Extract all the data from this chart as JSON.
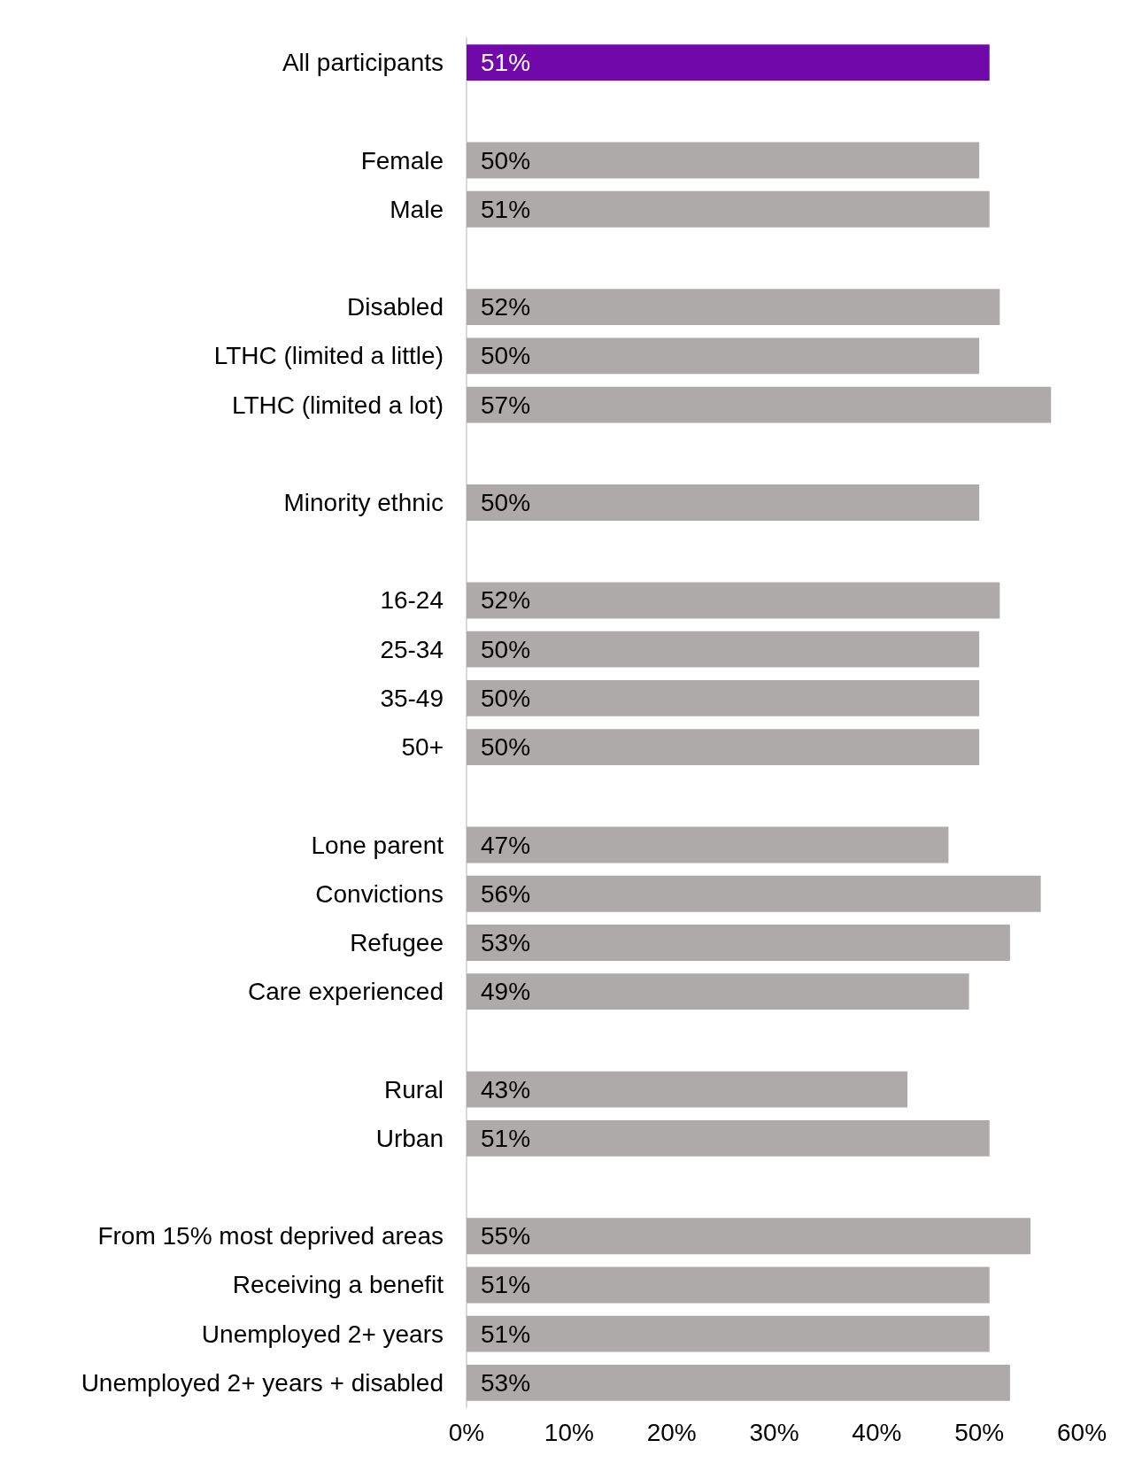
{
  "chart_data": {
    "type": "bar",
    "orientation": "horizontal",
    "categories": [
      "All participants",
      null,
      "Female",
      "Male",
      null,
      "Disabled",
      "LTHC (limited a little)",
      "LTHC (limited a lot)",
      null,
      "Minority ethnic",
      null,
      "16-24",
      "25-34",
      "35-49",
      "50+",
      null,
      "Lone parent",
      "Convictions",
      "Refugee",
      "Care experienced",
      null,
      "Rural",
      "Urban",
      null,
      "From 15% most deprived areas",
      "Receiving a benefit",
      "Unemployed 2+ years",
      "Unemployed 2+ years + disabled"
    ],
    "values": [
      51,
      null,
      50,
      51,
      null,
      52,
      50,
      57,
      null,
      50,
      null,
      52,
      50,
      50,
      50,
      null,
      47,
      56,
      53,
      49,
      null,
      43,
      51,
      null,
      55,
      51,
      51,
      53
    ],
    "value_labels": [
      "51%",
      null,
      "50%",
      "51%",
      null,
      "52%",
      "50%",
      "57%",
      null,
      "50%",
      null,
      "52%",
      "50%",
      "50%",
      "50%",
      null,
      "47%",
      "56%",
      "53%",
      "49%",
      null,
      "43%",
      "51%",
      null,
      "55%",
      "51%",
      "51%",
      "53%"
    ],
    "colors": [
      "#7109aa",
      null,
      "#aeaaaa",
      "#aeaaaa",
      null,
      "#aeaaaa",
      "#aeaaaa",
      "#aeaaaa",
      null,
      "#aeaaaa",
      null,
      "#aeaaaa",
      "#aeaaaa",
      "#aeaaaa",
      "#aeaaaa",
      null,
      "#aeaaaa",
      "#aeaaaa",
      "#aeaaaa",
      "#aeaaaa",
      null,
      "#aeaaaa",
      "#aeaaaa",
      null,
      "#aeaaaa",
      "#aeaaaa",
      "#aeaaaa",
      "#aeaaaa"
    ],
    "xlim": [
      0,
      60
    ],
    "xticks": [
      {
        "value": 0,
        "label": "0%"
      },
      {
        "value": 10,
        "label": "10%"
      },
      {
        "value": 20,
        "label": "20%"
      },
      {
        "value": 30,
        "label": "30%"
      },
      {
        "value": 40,
        "label": "40%"
      },
      {
        "value": 50,
        "label": "50%"
      },
      {
        "value": 60,
        "label": "60%"
      }
    ],
    "grid": false
  }
}
